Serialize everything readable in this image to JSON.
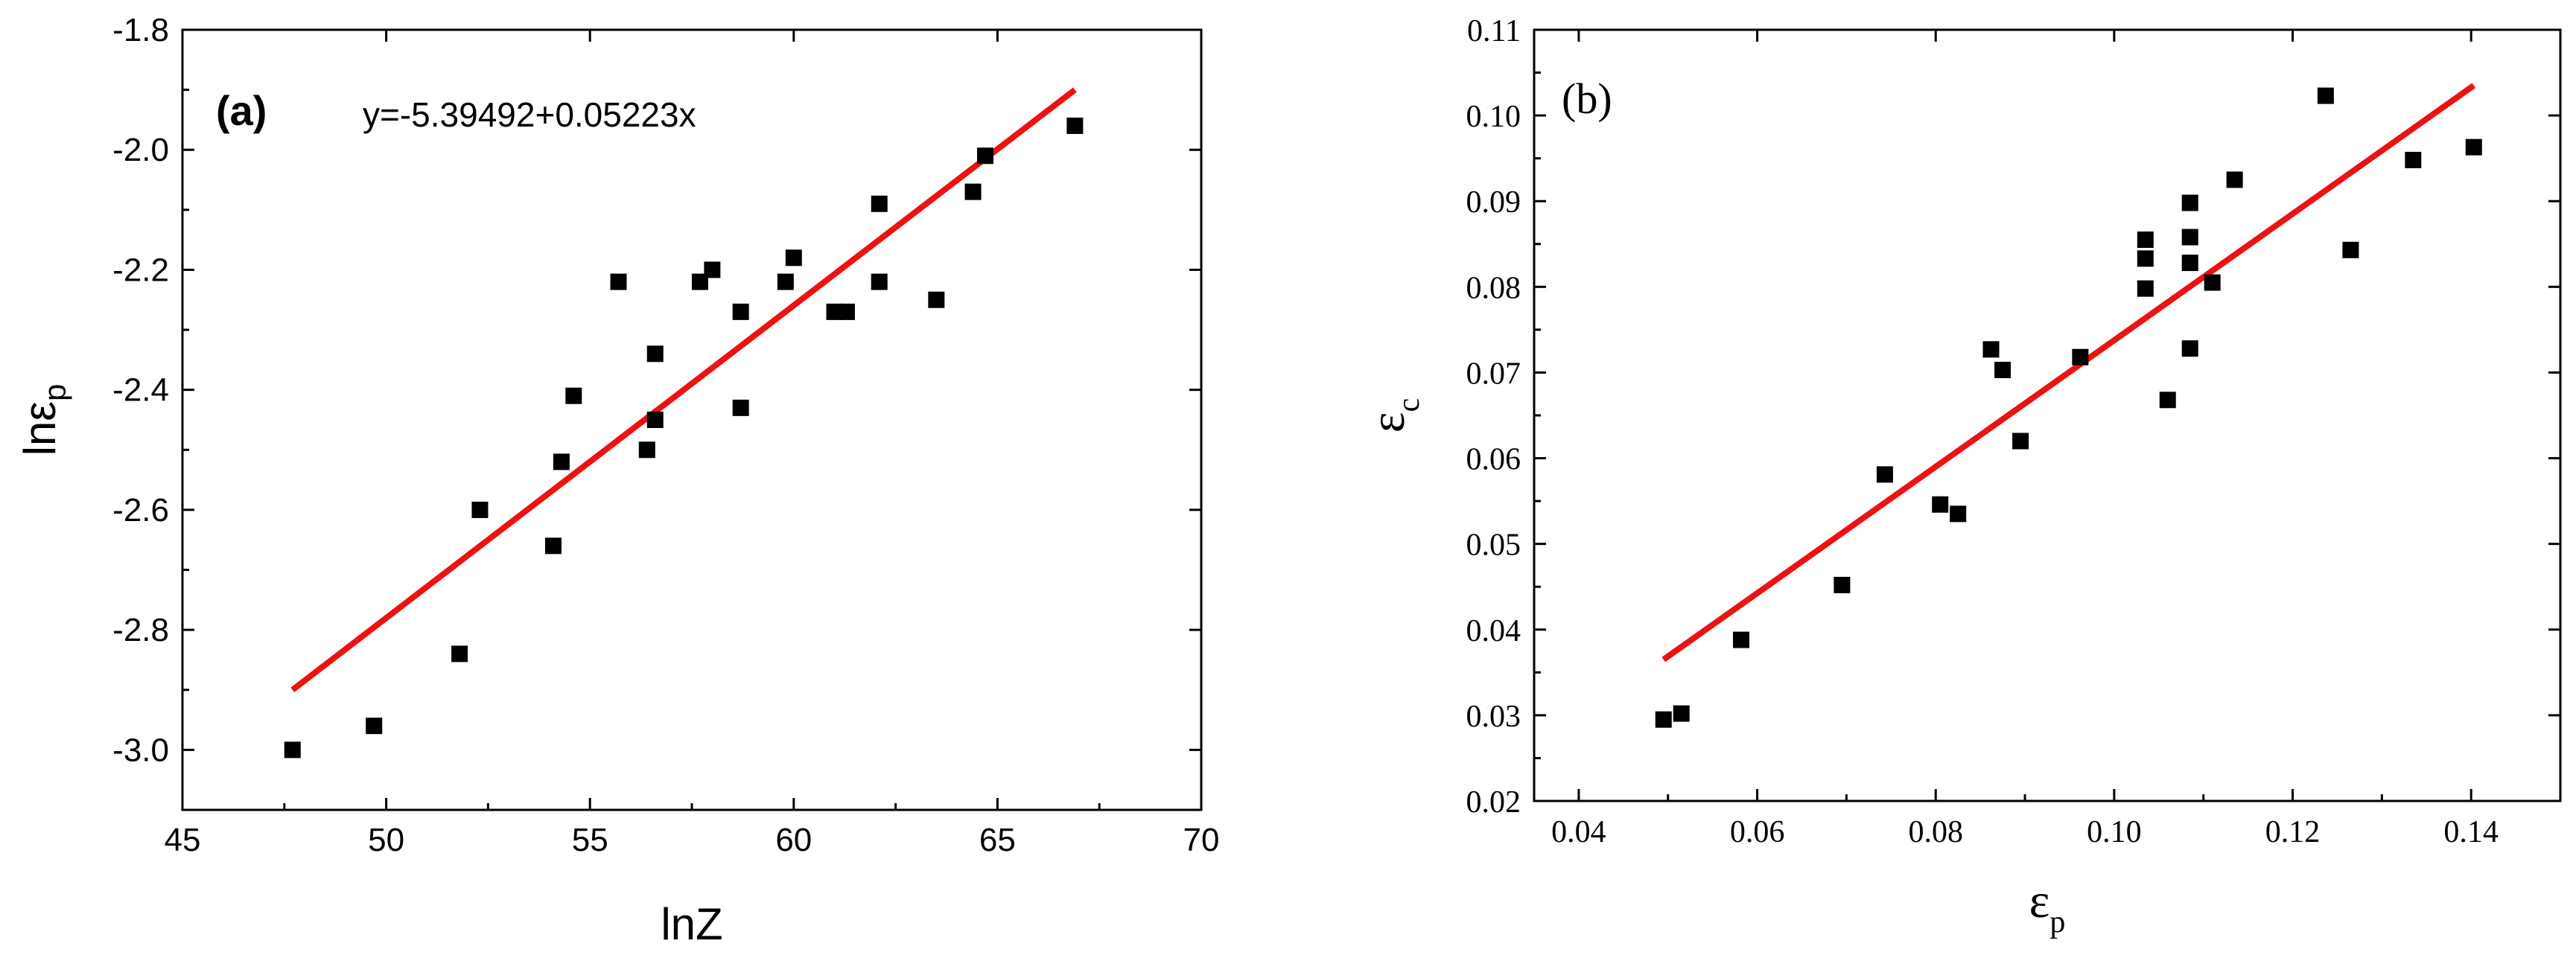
{
  "chart_data": [
    {
      "panel": "(a)",
      "type": "scatter",
      "xlabel": "lnZ",
      "ylabel_main": "lnε",
      "ylabel_sub": "p",
      "xlim": [
        45,
        70
      ],
      "ylim": [
        -3.1,
        -1.8
      ],
      "xticks": [
        45,
        50,
        55,
        60,
        65,
        70
      ],
      "xtick_labels": [
        "45",
        "50",
        "55",
        "60",
        "65",
        "70"
      ],
      "yticks": [
        -3.0,
        -2.8,
        -2.6,
        -2.4,
        -2.2,
        -2.0,
        -1.8
      ],
      "ytick_labels": [
        "-3.0",
        "-2.8",
        "-2.6",
        "-2.4",
        "-2.2",
        "-2.0",
        "-1.8"
      ],
      "annotation": "y=-5.39492+0.05223x",
      "points": [
        [
          47.7,
          -3.0
        ],
        [
          49.7,
          -2.96
        ],
        [
          51.8,
          -2.84
        ],
        [
          52.3,
          -2.6
        ],
        [
          54.1,
          -2.66
        ],
        [
          54.3,
          -2.52
        ],
        [
          54.6,
          -2.41
        ],
        [
          55.7,
          -2.22
        ],
        [
          56.4,
          -2.5
        ],
        [
          56.6,
          -2.34
        ],
        [
          56.6,
          -2.45
        ],
        [
          57.7,
          -2.22
        ],
        [
          58.0,
          -2.2
        ],
        [
          58.7,
          -2.27
        ],
        [
          58.7,
          -2.43
        ],
        [
          59.8,
          -2.22
        ],
        [
          60.0,
          -2.18
        ],
        [
          61.0,
          -2.27
        ],
        [
          61.3,
          -2.27
        ],
        [
          62.1,
          -2.09
        ],
        [
          62.1,
          -2.22
        ],
        [
          63.5,
          -2.25
        ],
        [
          64.4,
          -2.07
        ],
        [
          64.7,
          -2.01
        ],
        [
          66.9,
          -1.96
        ]
      ],
      "fit": {
        "x": [
          47.7,
          66.9
        ],
        "y": [
          -2.9,
          -1.9
        ]
      },
      "marker_color": "#000000",
      "line_color": "#ee1111"
    },
    {
      "panel": "(b)",
      "type": "scatter",
      "xlabel_main": "ε",
      "xlabel_sub": "p",
      "ylabel_main": "ε",
      "ylabel_sub": "c",
      "xlim": [
        0.035,
        0.15
      ],
      "ylim": [
        0.02,
        0.11
      ],
      "xticks": [
        0.04,
        0.06,
        0.08,
        0.1,
        0.12,
        0.14
      ],
      "xtick_labels": [
        "0.04",
        "0.06",
        "0.08",
        "0.10",
        "0.12",
        "0.14"
      ],
      "yticks": [
        0.02,
        0.03,
        0.04,
        0.05,
        0.06,
        0.07,
        0.08,
        0.09,
        0.1,
        0.11
      ],
      "ytick_labels": [
        "0.02",
        "0.03",
        "0.04",
        "0.05",
        "0.06",
        "0.07",
        "0.08",
        "0.09",
        "0.10",
        "0.11"
      ],
      "points": [
        [
          0.0495,
          0.0295
        ],
        [
          0.0515,
          0.0302
        ],
        [
          0.0582,
          0.0388
        ],
        [
          0.0695,
          0.0452
        ],
        [
          0.0743,
          0.0581
        ],
        [
          0.0805,
          0.0546
        ],
        [
          0.0825,
          0.0535
        ],
        [
          0.0862,
          0.0727
        ],
        [
          0.0875,
          0.0703
        ],
        [
          0.0895,
          0.062
        ],
        [
          0.0962,
          0.0718
        ],
        [
          0.1035,
          0.0855
        ],
        [
          0.1035,
          0.0833
        ],
        [
          0.1035,
          0.0798
        ],
        [
          0.106,
          0.0668
        ],
        [
          0.1085,
          0.0898
        ],
        [
          0.1085,
          0.0858
        ],
        [
          0.1085,
          0.0828
        ],
        [
          0.1085,
          0.0728
        ],
        [
          0.111,
          0.0805
        ],
        [
          0.1135,
          0.0925
        ],
        [
          0.1237,
          0.1023
        ],
        [
          0.1265,
          0.0843
        ],
        [
          0.1335,
          0.0948
        ],
        [
          0.1403,
          0.0963
        ]
      ],
      "fit": {
        "x": [
          0.0495,
          0.1403
        ],
        "y": [
          0.0365,
          0.1035
        ]
      },
      "marker_color": "#000000",
      "line_color": "#ee1111"
    }
  ]
}
